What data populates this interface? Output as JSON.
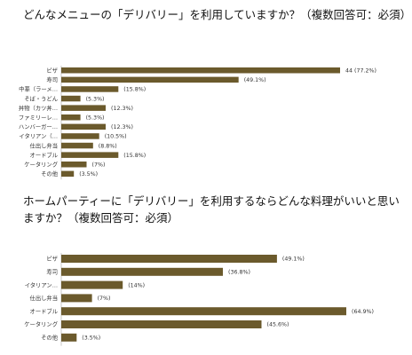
{
  "questions": [
    {
      "title": "どんなメニューの「デリバリー」を利用していますか？（複数回答可：必須）"
    },
    {
      "title": "ホームパーティーに「デリバリー」を利用するならどんな料理がいいと思いますか？（複数回答可：必須）"
    }
  ],
  "chart_data": [
    {
      "type": "bar",
      "orientation": "horizontal",
      "title": "どんなメニューの「デリバリー」を利用していますか？（複数回答可：必須）",
      "categories": [
        "ピザ",
        "寿司",
        "中華（ラーメ…",
        "そば・うどん",
        "丼物（カツ丼…",
        "ファミリーレ…",
        "ハンバーガー…",
        "イタリアン（…",
        "仕出し弁当",
        "オードブル",
        "ケータリング",
        "その他"
      ],
      "values": [
        77.2,
        49.1,
        15.8,
        5.3,
        12.3,
        5.3,
        12.3,
        10.5,
        8.8,
        15.8,
        7,
        3.5
      ],
      "value_labels": [
        "44 (77.2%)",
        "(49.1%)",
        "(15.8%)",
        "(5.3%)",
        "(12.3%)",
        "(5.3%)",
        "(12.3%)",
        "(10.5%)",
        "(8.8%)",
        "(15.8%)",
        "(7%)",
        "(3.5%)"
      ],
      "unit": "%",
      "xlim": [
        0,
        77.2
      ],
      "bar_color": "#6b5a2c",
      "grid": false,
      "legend": "none"
    },
    {
      "type": "bar",
      "orientation": "horizontal",
      "title": "ホームパーティーに「デリバリー」を利用するならどんな料理がいいと思いますか？（複数回答可：必須）",
      "categories": [
        "ピザ",
        "寿司",
        "イタリアン…",
        "仕出し弁当",
        "オードブル",
        "ケータリング",
        "その他"
      ],
      "values": [
        49.1,
        36.8,
        14,
        7,
        64.9,
        45.6,
        3.5
      ],
      "value_labels": [
        "(49.1%)",
        "(36.8%)",
        "(14%)",
        "(7%)",
        "(64.9%)",
        "(45.6%)",
        "(3.5%)"
      ],
      "unit": "%",
      "xlim": [
        0,
        64.9
      ],
      "bar_color": "#6b5a2c",
      "grid": false,
      "legend": "none"
    }
  ]
}
